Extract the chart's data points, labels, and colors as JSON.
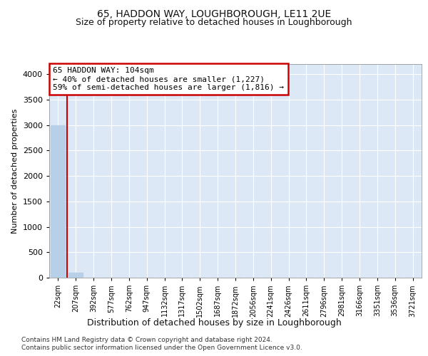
{
  "title": "65, HADDON WAY, LOUGHBOROUGH, LE11 2UE",
  "subtitle": "Size of property relative to detached houses in Loughborough",
  "xlabel": "Distribution of detached houses by size in Loughborough",
  "ylabel": "Number of detached properties",
  "bar_values": [
    3000,
    100,
    4,
    2,
    1,
    1,
    1,
    1,
    1,
    1,
    1,
    1,
    1,
    1,
    1,
    1,
    1,
    1,
    1,
    1,
    1
  ],
  "bar_labels": [
    "22sqm",
    "207sqm",
    "392sqm",
    "577sqm",
    "762sqm",
    "947sqm",
    "1132sqm",
    "1317sqm",
    "1502sqm",
    "1687sqm",
    "1872sqm",
    "2056sqm",
    "2241sqm",
    "2426sqm",
    "2611sqm",
    "2796sqm",
    "2981sqm",
    "3166sqm",
    "3351sqm",
    "3536sqm",
    "3721sqm"
  ],
  "bar_color": "#b8cfe8",
  "property_line_color": "#cc0000",
  "annotation_title": "65 HADDON WAY: 104sqm",
  "annotation_line1": "← 40% of detached houses are smaller (1,227)",
  "annotation_line2": "59% of semi-detached houses are larger (1,816) →",
  "annotation_box_color": "#cc0000",
  "ylim": [
    0,
    4200
  ],
  "yticks": [
    0,
    500,
    1000,
    1500,
    2000,
    2500,
    3000,
    3500,
    4000
  ],
  "footnote1": "Contains HM Land Registry data © Crown copyright and database right 2024.",
  "footnote2": "Contains public sector information licensed under the Open Government Licence v3.0.",
  "background_color": "#dce8f5",
  "fig_background": "#ffffff",
  "grid_color": "#ffffff",
  "title_fontsize": 10,
  "subtitle_fontsize": 9
}
